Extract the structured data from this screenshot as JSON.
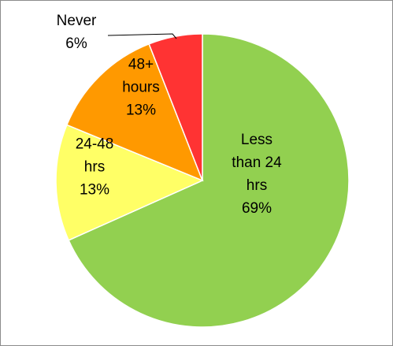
{
  "chart_data": {
    "type": "pie",
    "title": "",
    "slices": [
      {
        "label": "Less than 24 hrs",
        "value": 69,
        "display": "69%",
        "lines": [
          "Less",
          "than 24",
          "hrs",
          "69%"
        ],
        "color": "#92d050"
      },
      {
        "label": "24-48 hrs",
        "value": 13,
        "display": "13%",
        "lines": [
          "24-48",
          "hrs",
          "13%"
        ],
        "color": "#ffff66"
      },
      {
        "label": "48+ hours",
        "value": 13,
        "display": "13%",
        "lines": [
          "48+",
          "hours",
          "13%"
        ],
        "color": "#ff9900"
      },
      {
        "label": "Never",
        "value": 6,
        "display": "6%",
        "lines": [
          "Never",
          "6%"
        ],
        "color": "#ff3333"
      }
    ],
    "start_angle_deg": 0,
    "direction": "clockwise",
    "legend": "none",
    "labels_inside": true,
    "leader_line_for": "Never"
  }
}
